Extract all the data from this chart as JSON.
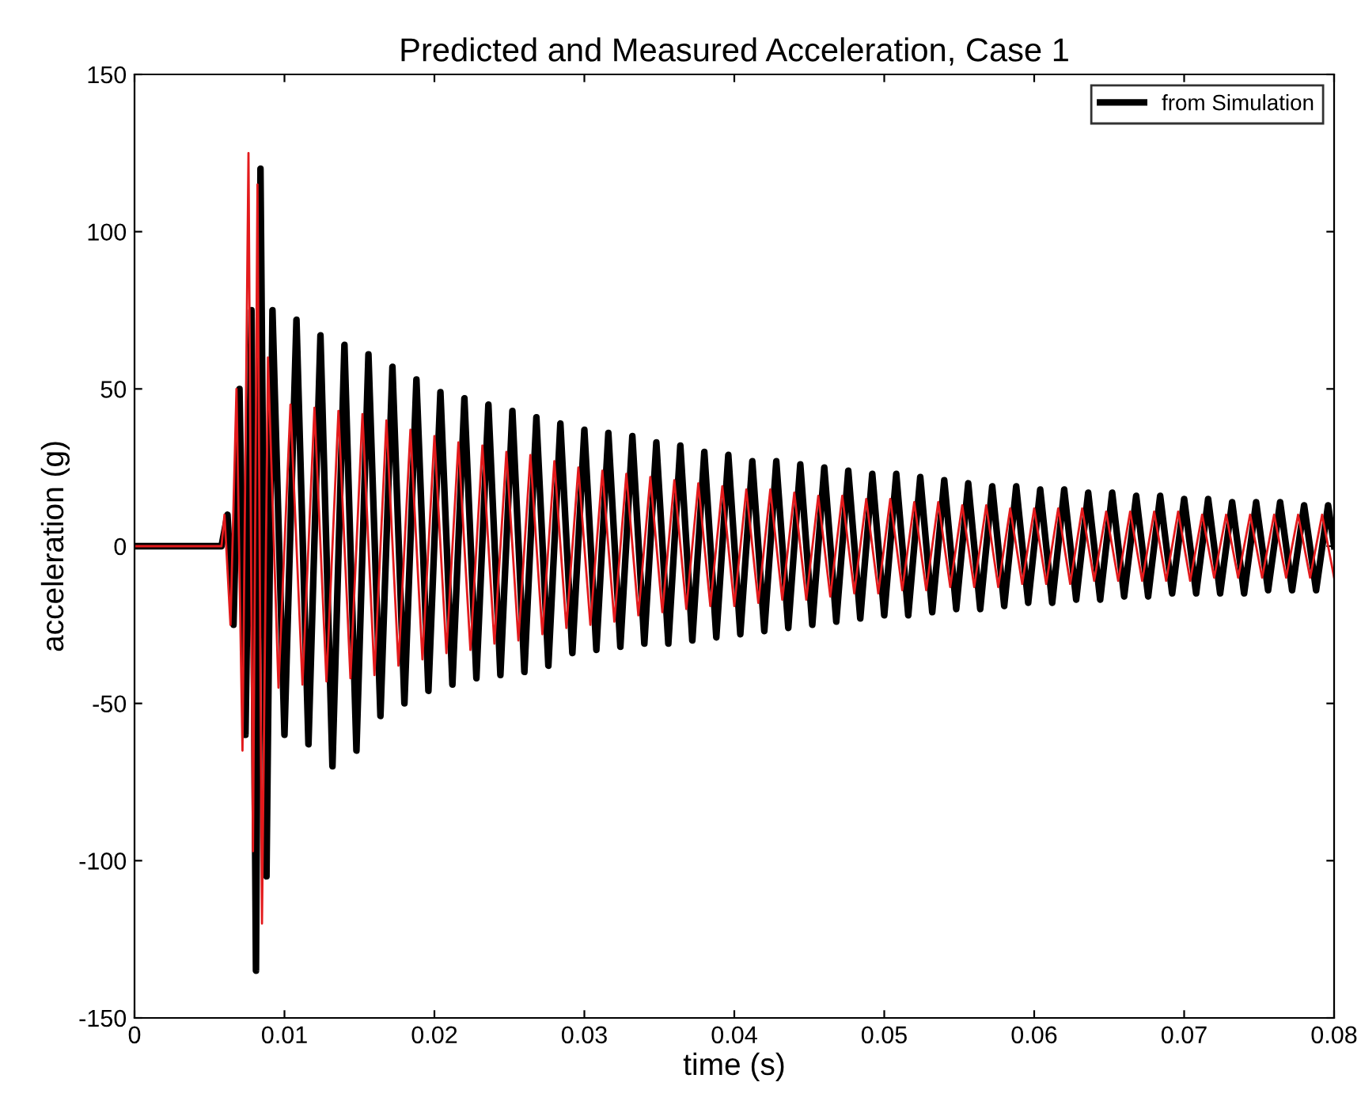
{
  "chart_data": {
    "type": "line",
    "title": "Predicted and Measured Acceleration, Case 1",
    "xlabel": "time (s)",
    "ylabel": "acceleration (g)",
    "xlim": [
      0,
      0.08
    ],
    "ylim": [
      -150,
      150
    ],
    "xticks": [
      0,
      0.01,
      0.02,
      0.03,
      0.04,
      0.05,
      0.06,
      0.07,
      0.08
    ],
    "yticks": [
      -150,
      -100,
      -50,
      0,
      50,
      100,
      150
    ],
    "grid": false,
    "legend": "top right",
    "series": [
      {
        "name": "from Simulation",
        "color": "#000000",
        "x": [
          0,
          0.0058,
          0.0062,
          0.0066,
          0.007,
          0.0074,
          0.0078,
          0.0081,
          0.0084,
          0.0088,
          0.0092,
          0.01,
          0.0108,
          0.0116,
          0.0124,
          0.0132,
          0.014,
          0.0148,
          0.0156,
          0.0164,
          0.0172,
          0.018,
          0.0188,
          0.0196,
          0.0204,
          0.0212,
          0.022,
          0.0228,
          0.0236,
          0.0244,
          0.0252,
          0.026,
          0.0268,
          0.0276,
          0.0284,
          0.0292,
          0.03,
          0.0308,
          0.0316,
          0.0324,
          0.0332,
          0.034,
          0.0348,
          0.0356,
          0.0364,
          0.0372,
          0.038,
          0.0388,
          0.0396,
          0.0404,
          0.0412,
          0.042,
          0.0428,
          0.0436,
          0.0444,
          0.0452,
          0.046,
          0.0468,
          0.0476,
          0.0484,
          0.0492,
          0.05,
          0.0508,
          0.0516,
          0.0524,
          0.0532,
          0.054,
          0.0548,
          0.0556,
          0.0564,
          0.0572,
          0.058,
          0.0588,
          0.0596,
          0.0604,
          0.0612,
          0.062,
          0.0628,
          0.0636,
          0.0644,
          0.0652,
          0.066,
          0.0668,
          0.0676,
          0.0684,
          0.0692,
          0.07,
          0.0708,
          0.0716,
          0.0724,
          0.0732,
          0.074,
          0.0748,
          0.0756,
          0.0764,
          0.0772,
          0.078,
          0.0788,
          0.0796,
          0.08
        ],
        "values": [
          0,
          0,
          10,
          -25,
          50,
          -60,
          75,
          -135,
          120,
          -105,
          75,
          -60,
          72,
          -63,
          67,
          -70,
          64,
          -65,
          61,
          -54,
          57,
          -50,
          53,
          -46,
          49,
          -44,
          47,
          -42,
          45,
          -41,
          43,
          -40,
          41,
          -38,
          39,
          -34,
          37,
          -33,
          36,
          -32,
          35,
          -31,
          33,
          -31,
          32,
          -30,
          30,
          -29,
          29,
          -28,
          27,
          -27,
          27,
          -26,
          26,
          -25,
          25,
          -24,
          24,
          -23,
          23,
          -22,
          23,
          -22,
          22,
          -21,
          21,
          -20,
          20,
          -20,
          19,
          -19,
          19,
          -18,
          18,
          -18,
          18,
          -17,
          17,
          -17,
          17,
          -16,
          16,
          -16,
          16,
          -15,
          15,
          -15,
          15,
          -15,
          14,
          -15,
          14,
          -14,
          14,
          -14,
          13,
          -14,
          13,
          0
        ]
      },
      {
        "color": "#e31a1c",
        "x": [
          0,
          0.0058,
          0.006,
          0.0064,
          0.0068,
          0.0072,
          0.0076,
          0.0079,
          0.0082,
          0.0085,
          0.0089,
          0.0096,
          0.0104,
          0.0112,
          0.012,
          0.0128,
          0.0136,
          0.0144,
          0.0152,
          0.016,
          0.0168,
          0.0176,
          0.0184,
          0.0192,
          0.02,
          0.0208,
          0.0216,
          0.0224,
          0.0232,
          0.024,
          0.0248,
          0.0256,
          0.0264,
          0.0272,
          0.028,
          0.0288,
          0.0296,
          0.0304,
          0.0312,
          0.032,
          0.0328,
          0.0336,
          0.0344,
          0.0352,
          0.036,
          0.0368,
          0.0376,
          0.0384,
          0.0392,
          0.04,
          0.0408,
          0.0416,
          0.0424,
          0.0432,
          0.044,
          0.0448,
          0.0456,
          0.0464,
          0.0472,
          0.048,
          0.0488,
          0.0496,
          0.0504,
          0.0512,
          0.052,
          0.0528,
          0.0536,
          0.0544,
          0.0552,
          0.056,
          0.0568,
          0.0576,
          0.0584,
          0.0592,
          0.06,
          0.0608,
          0.0616,
          0.0624,
          0.0632,
          0.064,
          0.0648,
          0.0656,
          0.0664,
          0.0672,
          0.068,
          0.0688,
          0.0696,
          0.0704,
          0.0712,
          0.072,
          0.0728,
          0.0736,
          0.0744,
          0.0752,
          0.076,
          0.0768,
          0.0776,
          0.0784,
          0.0792,
          0.08
        ],
        "values": [
          0,
          0,
          10,
          -25,
          50,
          -65,
          125,
          -97,
          115,
          -120,
          60,
          -45,
          45,
          -44,
          44,
          -43,
          43,
          -42,
          42,
          -41,
          40,
          -38,
          37,
          -36,
          35,
          -34,
          33,
          -33,
          32,
          -31,
          30,
          -30,
          29,
          -28,
          27,
          -26,
          25,
          -25,
          24,
          -24,
          23,
          -22,
          22,
          -21,
          21,
          -20,
          20,
          -19,
          19,
          -19,
          18,
          -18,
          18,
          -17,
          17,
          -17,
          16,
          -16,
          16,
          -15,
          15,
          -15,
          15,
          -14,
          14,
          -14,
          14,
          -13,
          13,
          -13,
          13,
          -13,
          12,
          -12,
          12,
          -12,
          12,
          -12,
          12,
          -11,
          11,
          -11,
          11,
          -11,
          11,
          -11,
          11,
          -11,
          10,
          -10,
          10,
          -10,
          10,
          -10,
          10,
          -10,
          10,
          -10,
          10,
          -10
        ]
      }
    ]
  }
}
